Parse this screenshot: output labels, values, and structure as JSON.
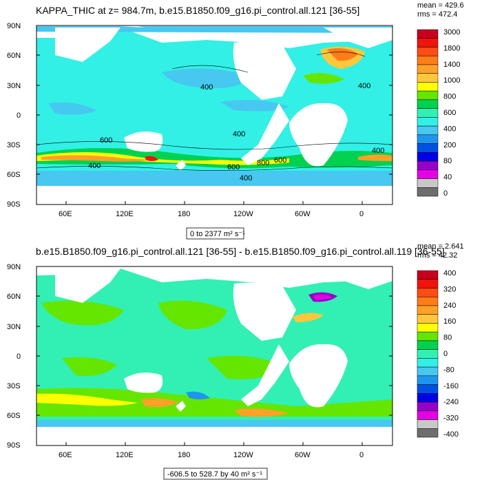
{
  "panel1": {
    "title": "KAPPA_THIC at z= 984.7m, b.e15.B1850.f09_g16.pi_control.all.121 [36-55]",
    "mean": "mean = 429.6",
    "rms": "rms = 472.4",
    "lat_ticks": [
      "90N",
      "60N",
      "30N",
      "0",
      "30S",
      "60S",
      "90S"
    ],
    "lon_ticks": [
      "60E",
      "120E",
      "180",
      "120W",
      "60W",
      "0"
    ],
    "range_label": "0 to 2377 m² s⁻¹",
    "contour_labels": [
      "400",
      "600",
      "400",
      "400",
      "600",
      "800",
      "600",
      "400",
      "400",
      "400"
    ],
    "colorbar": {
      "labels": [
        "3000",
        "1800",
        "1400",
        "1000",
        "800",
        "600",
        "400",
        "200",
        "80",
        "40",
        "0"
      ],
      "colors": [
        "#c8001e",
        "#f0140a",
        "#ff4b14",
        "#ff7d19",
        "#ffa028",
        "#ffc83c",
        "#ffff00",
        "#64e600",
        "#00d250",
        "#32f0b4",
        "#32f0e6",
        "#46c8f0",
        "#1e96f0",
        "#0050e6",
        "#0000e6",
        "#9600c8",
        "#e600e6",
        "#c8c8c8",
        "#6e6e6e"
      ],
      "color_names": [
        "dark-red",
        "red",
        "red-orange",
        "orange",
        "light-orange",
        "amber",
        "yellow",
        "light-green",
        "green",
        "aquamarine",
        "turquoise",
        "sky",
        "blue",
        "dark-blue",
        "deep-blue",
        "purple",
        "magenta",
        "light-gray",
        "gray"
      ]
    }
  },
  "panel2": {
    "title": "b.e15.B1850.f09_g16.pi_control.all.121 [36-55] - b.e15.B1850.f09_g16.pi_control.all.119 [36-55]",
    "mean": "mean = 2.641",
    "rms": "rms = 42.32",
    "lat_ticks": [
      "90N",
      "60N",
      "30N",
      "0",
      "30S",
      "60S",
      "90S"
    ],
    "lon_ticks": [
      "60E",
      "120E",
      "180",
      "120W",
      "60W",
      "0"
    ],
    "range_label": "-606.5 to 528.7 by 40 m² s⁻¹",
    "colorbar": {
      "labels": [
        "400",
        "320",
        "240",
        "160",
        "80",
        "0",
        "-80",
        "-160",
        "-240",
        "-320",
        "-400"
      ],
      "colors": [
        "#c8001e",
        "#f0140a",
        "#ff4b14",
        "#ff7d19",
        "#ffa028",
        "#ffc83c",
        "#ffff00",
        "#64e600",
        "#00d250",
        "#32f0b4",
        "#32f0e6",
        "#46c8f0",
        "#1e96f0",
        "#0050e6",
        "#0000e6",
        "#9600c8",
        "#e600e6",
        "#c8c8c8",
        "#6e6e6e"
      ],
      "color_names": [
        "dark-red",
        "red",
        "red-orange",
        "orange",
        "light-orange",
        "amber",
        "yellow",
        "light-green",
        "green",
        "aquamarine",
        "turquoise",
        "sky",
        "blue",
        "dark-blue",
        "deep-blue",
        "purple",
        "magenta",
        "light-gray",
        "gray"
      ]
    }
  },
  "colors": {
    "ocean_mean": "#32f0e6",
    "ocean_alt": "#46c8f0",
    "ocean_deep": "#1e96f0",
    "land": "#ffffff",
    "diff_base": "#32f0b4",
    "diff_pos": "#64e600"
  }
}
